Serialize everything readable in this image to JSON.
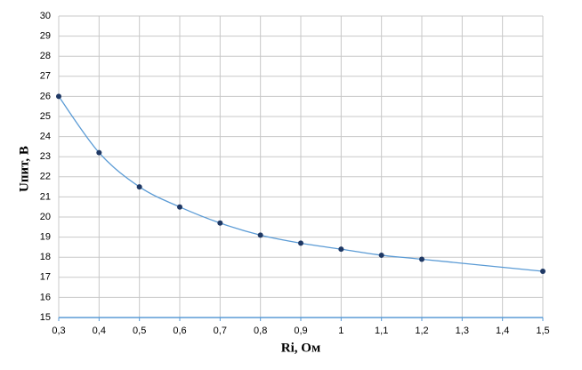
{
  "chart_data": {
    "type": "line",
    "xlabel": "Ri, Ом",
    "ylabel": "Uпит, В",
    "x": [
      0.3,
      0.4,
      0.5,
      0.6,
      0.7,
      0.8,
      0.9,
      1.0,
      1.1,
      1.2,
      1.5
    ],
    "values": [
      26,
      23.2,
      21.5,
      20.5,
      19.7,
      19.1,
      18.7,
      18.4,
      18.1,
      17.9,
      17.3
    ],
    "color": "#5b9bd5",
    "marker_color": "#1f3864",
    "grid": true,
    "smooth": true,
    "xlim": [
      0.3,
      1.5
    ],
    "ylim": [
      15,
      30
    ],
    "xticks": [
      {
        "value": 0.3,
        "label": "0,3"
      },
      {
        "value": 0.4,
        "label": "0,4"
      },
      {
        "value": 0.5,
        "label": "0,5"
      },
      {
        "value": 0.6,
        "label": "0,6"
      },
      {
        "value": 0.7,
        "label": "0,7"
      },
      {
        "value": 0.8,
        "label": "0,8"
      },
      {
        "value": 0.9,
        "label": "0,9"
      },
      1,
      {
        "value": 1.1,
        "label": "1,1"
      },
      {
        "value": 1.2,
        "label": "1,2"
      },
      {
        "value": 1.3,
        "label": "1,3"
      },
      {
        "value": 1.4,
        "label": "1,4"
      },
      {
        "value": 1.5,
        "label": "1,5"
      }
    ],
    "yticks": [
      15,
      16,
      17,
      18,
      19,
      20,
      21,
      22,
      23,
      24,
      25,
      26,
      27,
      28,
      29,
      30
    ]
  }
}
